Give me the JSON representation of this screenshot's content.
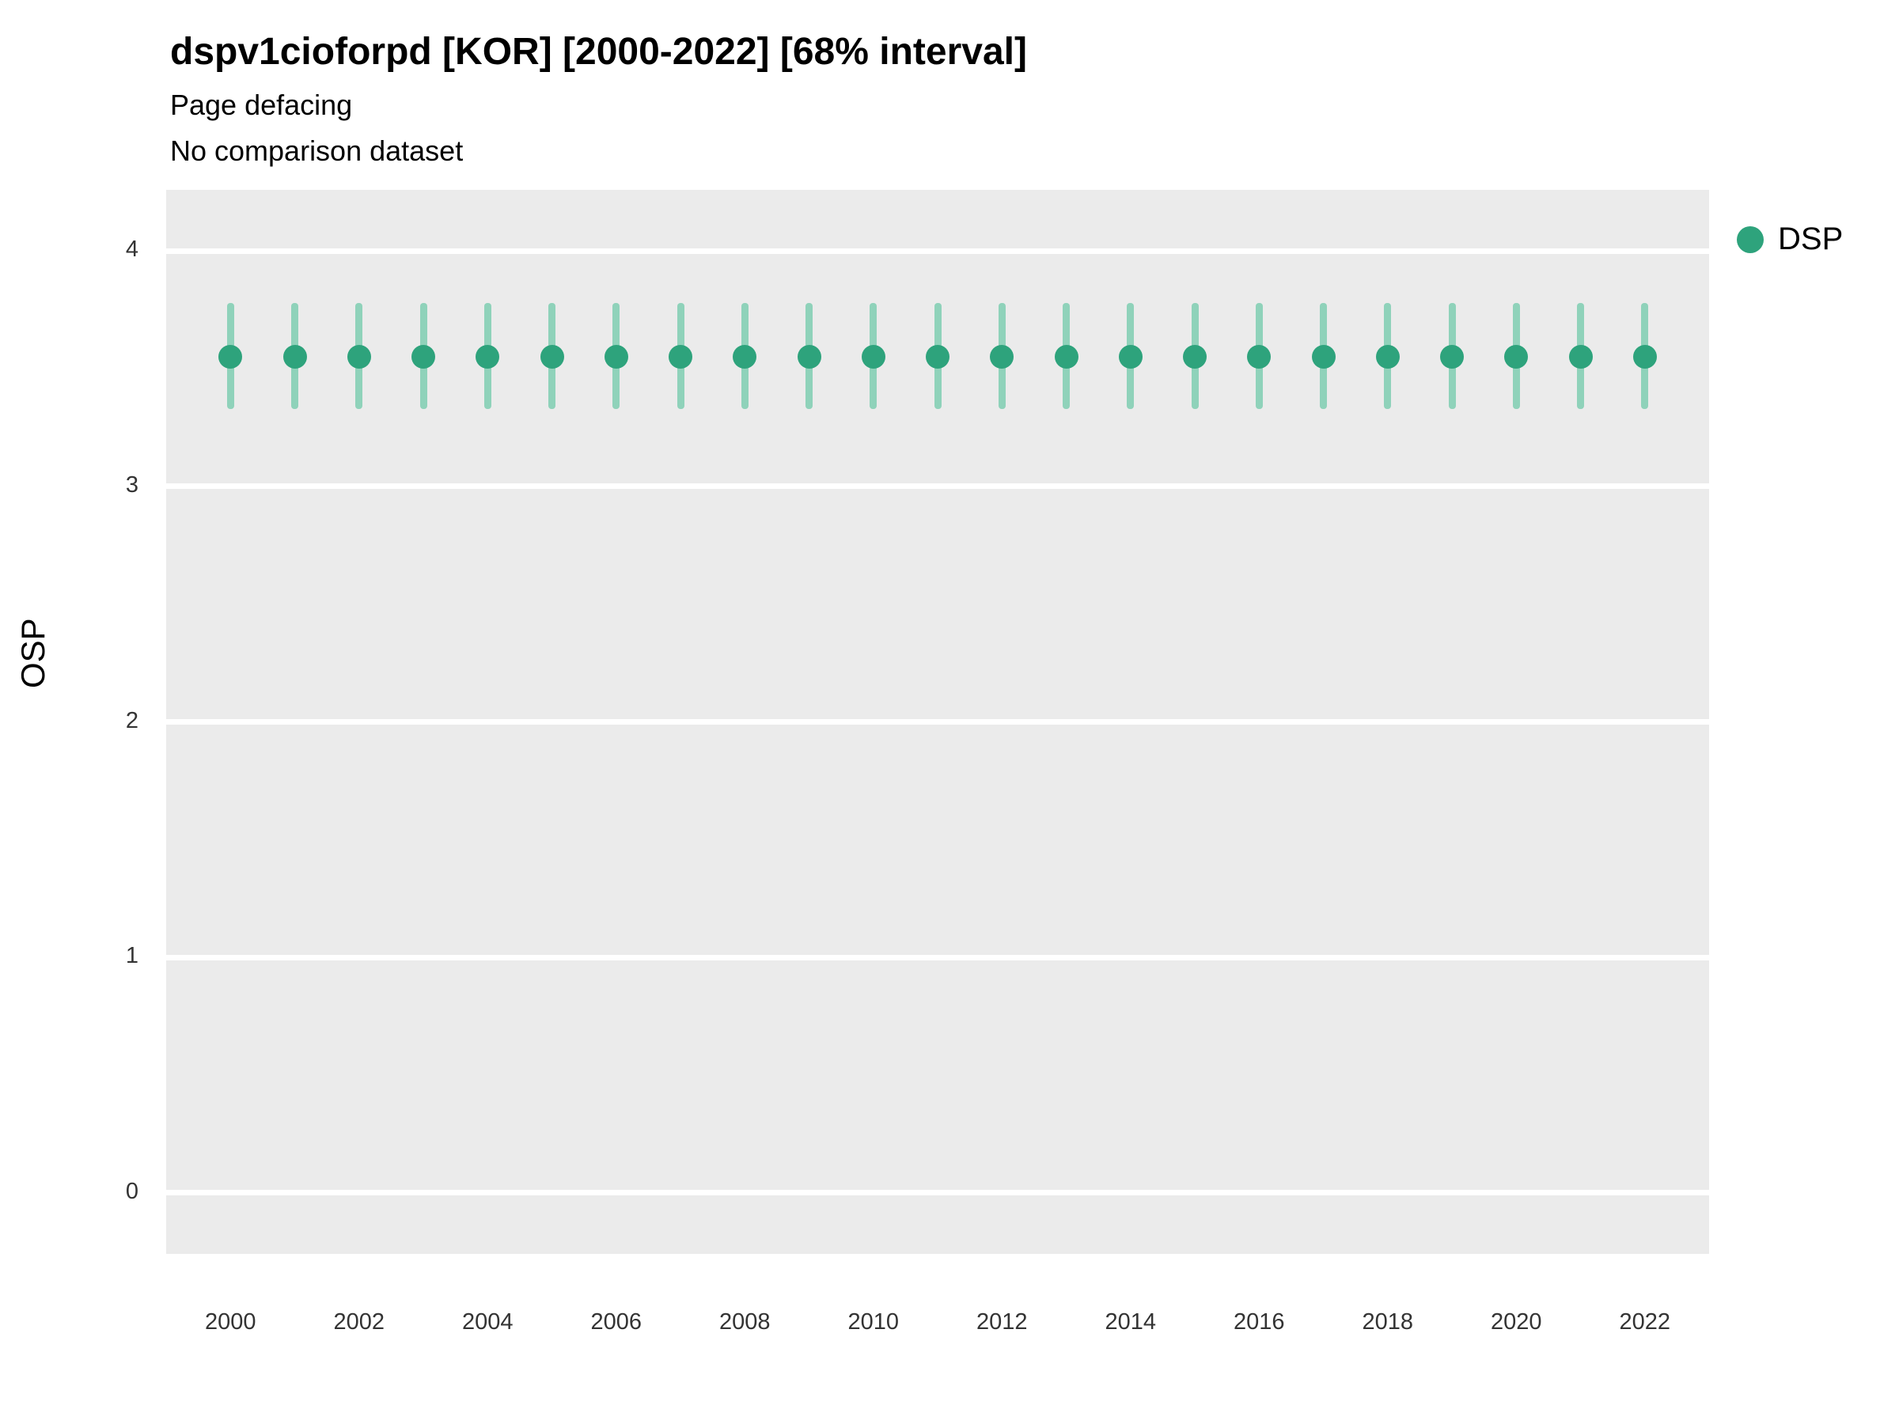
{
  "header": {
    "title": "dspv1cioforpd [KOR] [2000-2022] [68% interval]",
    "subtitle1": "Page defacing",
    "subtitle2": "No comparison dataset"
  },
  "axes": {
    "ylabel": "OSP",
    "yticks": [
      0,
      1,
      2,
      3,
      4
    ],
    "xticks": [
      2000,
      2002,
      2004,
      2006,
      2008,
      2010,
      2012,
      2014,
      2016,
      2018,
      2020,
      2022
    ],
    "ylim": [
      -0.26,
      4.26
    ],
    "xlim": [
      1999,
      2023
    ]
  },
  "legend": {
    "label": "DSP"
  },
  "colors": {
    "marker": "#2EA37C",
    "interval": "#8FD2BA",
    "panel": "#EBEBEB",
    "grid": "#FFFFFF"
  },
  "chart_data": {
    "type": "scatter",
    "title": "dspv1cioforpd [KOR] [2000-2022] [68% interval]",
    "subtitle": "Page defacing",
    "note": "No comparison dataset",
    "xlabel": "",
    "ylabel": "OSP",
    "ylim": [
      -0.26,
      4.26
    ],
    "grid": true,
    "legend_position": "right",
    "x": [
      2000,
      2001,
      2002,
      2003,
      2004,
      2005,
      2006,
      2007,
      2008,
      2009,
      2010,
      2011,
      2012,
      2013,
      2014,
      2015,
      2016,
      2017,
      2018,
      2019,
      2020,
      2021,
      2022
    ],
    "series": [
      {
        "name": "DSP",
        "values": [
          3.55,
          3.55,
          3.55,
          3.55,
          3.55,
          3.55,
          3.55,
          3.55,
          3.55,
          3.55,
          3.55,
          3.55,
          3.55,
          3.55,
          3.55,
          3.55,
          3.55,
          3.55,
          3.55,
          3.55,
          3.55,
          3.55,
          3.55
        ],
        "interval_low": [
          3.33,
          3.33,
          3.33,
          3.33,
          3.33,
          3.33,
          3.33,
          3.33,
          3.33,
          3.33,
          3.33,
          3.33,
          3.33,
          3.33,
          3.33,
          3.33,
          3.33,
          3.33,
          3.33,
          3.33,
          3.33,
          3.33,
          3.33
        ],
        "interval_high": [
          3.78,
          3.78,
          3.78,
          3.78,
          3.78,
          3.78,
          3.78,
          3.78,
          3.78,
          3.78,
          3.78,
          3.78,
          3.78,
          3.78,
          3.78,
          3.78,
          3.78,
          3.78,
          3.78,
          3.78,
          3.78,
          3.78,
          3.78
        ],
        "interval_level": "68%"
      }
    ]
  }
}
